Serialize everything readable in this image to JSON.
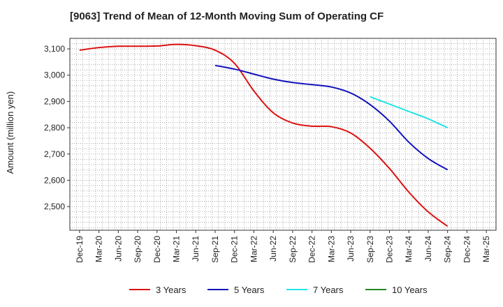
{
  "chart_data": {
    "type": "line",
    "title": "[9063]  Trend of Mean of 12-Month Moving Sum of Operating CF",
    "xlabel": "",
    "ylabel": "Amount (million yen)",
    "ylim": [
      2410,
      3140
    ],
    "yticks": [
      2500,
      2600,
      2700,
      2800,
      2900,
      3000,
      3100
    ],
    "ytick_labels": [
      "2,500",
      "2,600",
      "2,700",
      "2,800",
      "2,900",
      "3,000",
      "3,100"
    ],
    "categories": [
      "Dec-19",
      "Mar-20",
      "Jun-20",
      "Sep-20",
      "Dec-20",
      "Mar-21",
      "Jun-21",
      "Sep-21",
      "Dec-21",
      "Mar-22",
      "Jun-22",
      "Sep-22",
      "Dec-22",
      "Mar-23",
      "Jun-23",
      "Sep-23",
      "Dec-23",
      "Mar-24",
      "Jun-24",
      "Sep-24",
      "Dec-24",
      "Mar-25"
    ],
    "grid": true,
    "legend_position": "bottom",
    "series": [
      {
        "name": "3 Years",
        "color": "#dd1111",
        "x": [
          "Dec-19",
          "Mar-20",
          "Jun-20",
          "Sep-20",
          "Dec-20",
          "Mar-21",
          "Jun-21",
          "Sep-21",
          "Dec-21",
          "Mar-22",
          "Jun-22",
          "Sep-22",
          "Dec-22",
          "Mar-23",
          "Jun-23",
          "Sep-23",
          "Dec-23",
          "Mar-24",
          "Jun-24",
          "Sep-24"
        ],
        "values": [
          3095,
          3105,
          3110,
          3110,
          3111,
          3117,
          3112,
          3095,
          3045,
          2940,
          2857,
          2818,
          2806,
          2804,
          2780,
          2722,
          2645,
          2555,
          2480,
          2425
        ]
      },
      {
        "name": "5 Years",
        "color": "#1111bb",
        "x": [
          "Sep-21",
          "Dec-21",
          "Mar-22",
          "Jun-22",
          "Sep-22",
          "Dec-22",
          "Mar-23",
          "Jun-23",
          "Sep-23",
          "Dec-23",
          "Mar-24",
          "Jun-24",
          "Sep-24"
        ],
        "values": [
          3037,
          3023,
          3004,
          2985,
          2972,
          2964,
          2955,
          2932,
          2888,
          2825,
          2745,
          2683,
          2640
        ]
      },
      {
        "name": "7 Years",
        "color": "#22e5e5",
        "x": [
          "Sep-23",
          "Dec-23",
          "Mar-24",
          "Jun-24",
          "Sep-24"
        ],
        "values": [
          2918,
          2890,
          2862,
          2834,
          2800
        ]
      },
      {
        "name": "10 Years",
        "color": "#228822",
        "x": [],
        "values": []
      }
    ]
  }
}
